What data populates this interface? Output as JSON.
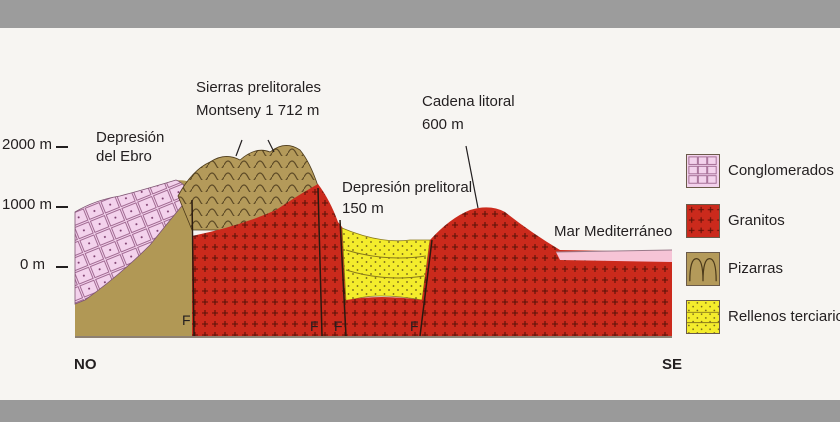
{
  "labels": {
    "depresion_ebro": [
      "Depresión",
      "del Ebro"
    ],
    "sierras": [
      "Sierras prelitorales",
      "Montseny 1 712 m"
    ],
    "depresion_prelitoral": [
      "Depresión prelitoral",
      "150 m"
    ],
    "cadena_litoral": [
      "Cadena litoral",
      "600 m"
    ],
    "mar": "Mar Mediterráneo"
  },
  "axis": {
    "ticks": [
      "2000 m",
      "1000 m",
      "0 m"
    ],
    "orientation_left": "NO",
    "orientation_right": "SE",
    "fault_label": "F"
  },
  "legend": [
    {
      "label": "Conglomerados",
      "icon": "conglomerate-pattern",
      "color": "#f0c6e6"
    },
    {
      "label": "Granitos",
      "icon": "granite-pattern",
      "color": "#c8281c"
    },
    {
      "label": "Pizarras",
      "icon": "slate-pattern",
      "color": "#b59a5a"
    },
    {
      "label": "Rellenos terciarios",
      "icon": "tertiary-fill-pattern",
      "color": "#f2ea2a"
    }
  ]
}
